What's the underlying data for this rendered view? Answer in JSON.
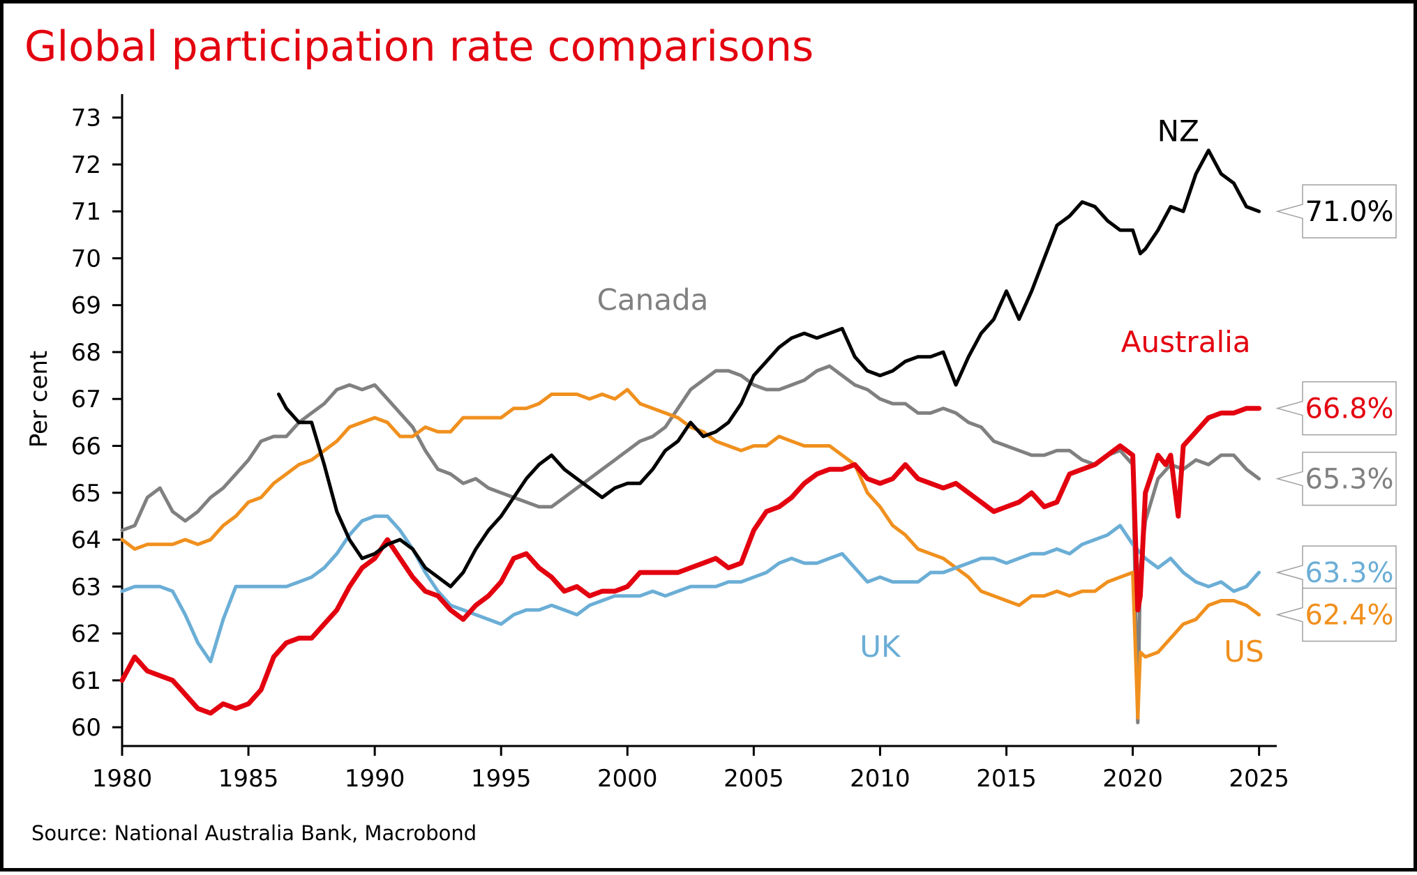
{
  "chart_data": {
    "type": "line",
    "title": "Global participation rate comparisons",
    "ylabel": "Per cent",
    "source": "Source: National Australia Bank, Macrobond",
    "xlim": [
      1980,
      2025.7
    ],
    "ylim": [
      59.6,
      73.5
    ],
    "x_ticks": [
      1980,
      1985,
      1990,
      1995,
      2000,
      2005,
      2010,
      2015,
      2020,
      2025
    ],
    "x_tick_labels": [
      "1980",
      "1985",
      "1990",
      "1995",
      "2000",
      "2005",
      "2010",
      "2015",
      "2020",
      "2025"
    ],
    "y_ticks": [
      60,
      61,
      62,
      63,
      64,
      65,
      66,
      67,
      68,
      69,
      70,
      71,
      72,
      73
    ],
    "y_tick_labels": [
      "60",
      "61",
      "62",
      "63",
      "64",
      "65",
      "66",
      "67",
      "68",
      "69",
      "70",
      "71",
      "72",
      "73"
    ],
    "grid": false,
    "colors": {
      "title": "#e3000f",
      "axis": "#000000"
    },
    "series": [
      {
        "key": "canada",
        "name": "Canada",
        "color": "#808080",
        "width": 5,
        "x": [
          1980,
          1980.5,
          1981,
          1981.5,
          1982,
          1982.5,
          1983,
          1983.5,
          1984,
          1984.5,
          1985,
          1985.5,
          1986,
          1986.5,
          1987,
          1987.5,
          1988,
          1988.5,
          1989,
          1989.5,
          1990,
          1990.5,
          1991,
          1991.5,
          1992,
          1992.5,
          1993,
          1993.5,
          1994,
          1994.5,
          1995,
          1995.5,
          1996,
          1996.5,
          1997,
          1997.5,
          1998,
          1998.5,
          1999,
          1999.5,
          2000,
          2000.5,
          2001,
          2001.5,
          2002,
          2002.5,
          2003,
          2003.5,
          2004,
          2004.5,
          2005,
          2005.5,
          2006,
          2006.5,
          2007,
          2007.5,
          2008,
          2008.5,
          2009,
          2009.5,
          2010,
          2010.5,
          2011,
          2011.5,
          2012,
          2012.5,
          2013,
          2013.5,
          2014,
          2014.5,
          2015,
          2015.5,
          2016,
          2016.5,
          2017,
          2017.5,
          2018,
          2018.5,
          2019,
          2019.5,
          2020,
          2020.2,
          2020.3,
          2020.5,
          2021,
          2021.5,
          2022,
          2022.5,
          2023,
          2023.5,
          2024,
          2024.5,
          2025
        ],
        "y": [
          64.2,
          64.3,
          64.9,
          65.1,
          64.6,
          64.4,
          64.6,
          64.9,
          65.1,
          65.4,
          65.7,
          66.1,
          66.2,
          66.2,
          66.5,
          66.7,
          66.9,
          67.2,
          67.3,
          67.2,
          67.3,
          67.0,
          66.7,
          66.4,
          65.9,
          65.5,
          65.4,
          65.2,
          65.3,
          65.1,
          65.0,
          64.9,
          64.8,
          64.7,
          64.7,
          64.9,
          65.1,
          65.3,
          65.5,
          65.7,
          65.9,
          66.1,
          66.2,
          66.4,
          66.8,
          67.2,
          67.4,
          67.6,
          67.6,
          67.5,
          67.3,
          67.2,
          67.2,
          67.3,
          67.4,
          67.6,
          67.7,
          67.5,
          67.3,
          67.2,
          67.0,
          66.9,
          66.9,
          66.7,
          66.7,
          66.8,
          66.7,
          66.5,
          66.4,
          66.1,
          66.0,
          65.9,
          65.8,
          65.8,
          65.9,
          65.9,
          65.7,
          65.6,
          65.8,
          65.9,
          65.6,
          60.1,
          63.4,
          64.4,
          65.3,
          65.6,
          65.5,
          65.7,
          65.6,
          65.8,
          65.8,
          65.5,
          65.3
        ]
      },
      {
        "key": "us",
        "name": "US",
        "color": "#f0901e",
        "width": 5,
        "x": [
          1980,
          1980.5,
          1981,
          1981.5,
          1982,
          1982.5,
          1983,
          1983.5,
          1984,
          1984.5,
          1985,
          1985.5,
          1986,
          1986.5,
          1987,
          1987.5,
          1988,
          1988.5,
          1989,
          1989.5,
          1990,
          1990.5,
          1991,
          1991.5,
          1992,
          1992.5,
          1993,
          1993.5,
          1994,
          1994.5,
          1995,
          1995.5,
          1996,
          1996.5,
          1997,
          1997.5,
          1998,
          1998.5,
          1999,
          1999.5,
          2000,
          2000.5,
          2001,
          2001.5,
          2002,
          2002.5,
          2003,
          2003.5,
          2004,
          2004.5,
          2005,
          2005.5,
          2006,
          2006.5,
          2007,
          2007.5,
          2008,
          2008.5,
          2009,
          2009.5,
          2010,
          2010.5,
          2011,
          2011.5,
          2012,
          2012.5,
          2013,
          2013.5,
          2014,
          2014.5,
          2015,
          2015.5,
          2016,
          2016.5,
          2017,
          2017.5,
          2018,
          2018.5,
          2019,
          2019.5,
          2020,
          2020.2,
          2020.3,
          2020.5,
          2021,
          2021.5,
          2022,
          2022.5,
          2023,
          2023.5,
          2024,
          2024.5,
          2025
        ],
        "y": [
          64.0,
          63.8,
          63.9,
          63.9,
          63.9,
          64.0,
          63.9,
          64.0,
          64.3,
          64.5,
          64.8,
          64.9,
          65.2,
          65.4,
          65.6,
          65.7,
          65.9,
          66.1,
          66.4,
          66.5,
          66.6,
          66.5,
          66.2,
          66.2,
          66.4,
          66.3,
          66.3,
          66.6,
          66.6,
          66.6,
          66.6,
          66.8,
          66.8,
          66.9,
          67.1,
          67.1,
          67.1,
          67.0,
          67.1,
          67.0,
          67.2,
          66.9,
          66.8,
          66.7,
          66.6,
          66.4,
          66.3,
          66.1,
          66.0,
          65.9,
          66.0,
          66.0,
          66.2,
          66.1,
          66.0,
          66.0,
          66.0,
          65.8,
          65.6,
          65.0,
          64.7,
          64.3,
          64.1,
          63.8,
          63.7,
          63.6,
          63.4,
          63.2,
          62.9,
          62.8,
          62.7,
          62.6,
          62.8,
          62.8,
          62.9,
          62.8,
          62.9,
          62.9,
          63.1,
          63.2,
          63.3,
          60.2,
          61.6,
          61.5,
          61.6,
          61.9,
          62.2,
          62.3,
          62.6,
          62.7,
          62.7,
          62.6,
          62.4
        ]
      },
      {
        "key": "uk",
        "name": "UK",
        "color": "#6baed6",
        "width": 5,
        "x": [
          1980,
          1980.5,
          1981,
          1981.5,
          1982,
          1982.5,
          1983,
          1983.5,
          1984,
          1984.5,
          1985,
          1985.5,
          1986,
          1986.5,
          1987,
          1987.5,
          1988,
          1988.5,
          1989,
          1989.5,
          1990,
          1990.5,
          1991,
          1991.5,
          1992,
          1992.5,
          1993,
          1993.5,
          1994,
          1994.5,
          1995,
          1995.5,
          1996,
          1996.5,
          1997,
          1997.5,
          1998,
          1998.5,
          1999,
          1999.5,
          2000,
          2000.5,
          2001,
          2001.5,
          2002,
          2002.5,
          2003,
          2003.5,
          2004,
          2004.5,
          2005,
          2005.5,
          2006,
          2006.5,
          2007,
          2007.5,
          2008,
          2008.5,
          2009,
          2009.5,
          2010,
          2010.5,
          2011,
          2011.5,
          2012,
          2012.5,
          2013,
          2013.5,
          2014,
          2014.5,
          2015,
          2015.5,
          2016,
          2016.5,
          2017,
          2017.5,
          2018,
          2018.5,
          2019,
          2019.5,
          2020,
          2020.5,
          2021,
          2021.5,
          2022,
          2022.5,
          2023,
          2023.5,
          2024,
          2024.5,
          2025
        ],
        "y": [
          62.9,
          63.0,
          63.0,
          63.0,
          62.9,
          62.4,
          61.8,
          61.4,
          62.3,
          63.0,
          63.0,
          63.0,
          63.0,
          63.0,
          63.1,
          63.2,
          63.4,
          63.7,
          64.1,
          64.4,
          64.5,
          64.5,
          64.2,
          63.8,
          63.3,
          62.9,
          62.6,
          62.5,
          62.4,
          62.3,
          62.2,
          62.4,
          62.5,
          62.5,
          62.6,
          62.5,
          62.4,
          62.6,
          62.7,
          62.8,
          62.8,
          62.8,
          62.9,
          62.8,
          62.9,
          63.0,
          63.0,
          63.0,
          63.1,
          63.1,
          63.2,
          63.3,
          63.5,
          63.6,
          63.5,
          63.5,
          63.6,
          63.7,
          63.4,
          63.1,
          63.2,
          63.1,
          63.1,
          63.1,
          63.3,
          63.3,
          63.4,
          63.5,
          63.6,
          63.6,
          63.5,
          63.6,
          63.7,
          63.7,
          63.8,
          63.7,
          63.9,
          64.0,
          64.1,
          64.3,
          63.9,
          63.6,
          63.4,
          63.6,
          63.3,
          63.1,
          63.0,
          63.1,
          62.9,
          63.0,
          63.3
        ]
      },
      {
        "key": "australia",
        "name": "Australia",
        "color": "#e3000f",
        "width": 7,
        "x": [
          1980,
          1980.5,
          1981,
          1981.5,
          1982,
          1982.5,
          1983,
          1983.5,
          1984,
          1984.5,
          1985,
          1985.5,
          1986,
          1986.5,
          1987,
          1987.5,
          1988,
          1988.5,
          1989,
          1989.5,
          1990,
          1990.5,
          1991,
          1991.5,
          1992,
          1992.5,
          1993,
          1993.5,
          1994,
          1994.5,
          1995,
          1995.5,
          1996,
          1996.5,
          1997,
          1997.5,
          1998,
          1998.5,
          1999,
          1999.5,
          2000,
          2000.5,
          2001,
          2001.5,
          2002,
          2002.5,
          2003,
          2003.5,
          2004,
          2004.5,
          2005,
          2005.5,
          2006,
          2006.5,
          2007,
          2007.5,
          2008,
          2008.5,
          2009,
          2009.5,
          2010,
          2010.5,
          2011,
          2011.5,
          2012,
          2012.5,
          2013,
          2013.5,
          2014,
          2014.5,
          2015,
          2015.5,
          2016,
          2016.5,
          2017,
          2017.5,
          2018,
          2018.5,
          2019,
          2019.5,
          2020,
          2020.2,
          2020.3,
          2020.5,
          2021,
          2021.3,
          2021.5,
          2021.8,
          2022,
          2022.5,
          2023,
          2023.5,
          2024,
          2024.5,
          2025
        ],
        "y": [
          61.0,
          61.5,
          61.2,
          61.1,
          61.0,
          60.7,
          60.4,
          60.3,
          60.5,
          60.4,
          60.5,
          60.8,
          61.5,
          61.8,
          61.9,
          61.9,
          62.2,
          62.5,
          63.0,
          63.4,
          63.6,
          64.0,
          63.6,
          63.2,
          62.9,
          62.8,
          62.5,
          62.3,
          62.6,
          62.8,
          63.1,
          63.6,
          63.7,
          63.4,
          63.2,
          62.9,
          63.0,
          62.8,
          62.9,
          62.9,
          63.0,
          63.3,
          63.3,
          63.3,
          63.3,
          63.4,
          63.5,
          63.6,
          63.4,
          63.5,
          64.2,
          64.6,
          64.7,
          64.9,
          65.2,
          65.4,
          65.5,
          65.5,
          65.6,
          65.3,
          65.2,
          65.3,
          65.6,
          65.3,
          65.2,
          65.1,
          65.2,
          65.0,
          64.8,
          64.6,
          64.7,
          64.8,
          65.0,
          64.7,
          64.8,
          65.4,
          65.5,
          65.6,
          65.8,
          66.0,
          65.8,
          62.5,
          62.8,
          65.0,
          65.8,
          65.6,
          65.8,
          64.5,
          66.0,
          66.3,
          66.6,
          66.7,
          66.7,
          66.8,
          66.8
        ]
      },
      {
        "key": "nz",
        "name": "NZ",
        "color": "#000000",
        "width": 5,
        "x": [
          1986.2,
          1986.5,
          1987,
          1987.5,
          1988,
          1988.5,
          1989,
          1989.5,
          1990,
          1990.5,
          1991,
          1991.5,
          1992,
          1992.5,
          1993,
          1993.5,
          1994,
          1994.5,
          1995,
          1995.5,
          1996,
          1996.5,
          1997,
          1997.5,
          1998,
          1998.5,
          1999,
          1999.5,
          2000,
          2000.5,
          2001,
          2001.5,
          2002,
          2002.5,
          2003,
          2003.5,
          2004,
          2004.5,
          2005,
          2005.5,
          2006,
          2006.5,
          2007,
          2007.5,
          2008,
          2008.5,
          2009,
          2009.5,
          2010,
          2010.5,
          2011,
          2011.5,
          2012,
          2012.5,
          2013,
          2013.5,
          2014,
          2014.5,
          2015,
          2015.5,
          2016,
          2016.5,
          2017,
          2017.5,
          2018,
          2018.5,
          2019,
          2019.5,
          2020,
          2020.3,
          2020.5,
          2021,
          2021.5,
          2022,
          2022.5,
          2023,
          2023.5,
          2024,
          2024.5,
          2025
        ],
        "y": [
          67.1,
          66.8,
          66.5,
          66.5,
          65.6,
          64.6,
          64.0,
          63.6,
          63.7,
          63.9,
          64.0,
          63.8,
          63.4,
          63.2,
          63.0,
          63.3,
          63.8,
          64.2,
          64.5,
          64.9,
          65.3,
          65.6,
          65.8,
          65.5,
          65.3,
          65.1,
          64.9,
          65.1,
          65.2,
          65.2,
          65.5,
          65.9,
          66.1,
          66.5,
          66.2,
          66.3,
          66.5,
          66.9,
          67.5,
          67.8,
          68.1,
          68.3,
          68.4,
          68.3,
          68.4,
          68.5,
          67.9,
          67.6,
          67.5,
          67.6,
          67.8,
          67.9,
          67.9,
          68.0,
          67.3,
          67.9,
          68.4,
          68.7,
          69.3,
          68.7,
          69.3,
          70.0,
          70.7,
          70.9,
          71.2,
          71.1,
          70.8,
          70.6,
          70.6,
          70.1,
          70.2,
          70.6,
          71.1,
          71.0,
          71.8,
          72.3,
          71.8,
          71.6,
          71.1,
          71.0
        ]
      }
    ],
    "series_labels": [
      {
        "key": "canada",
        "text": "Canada",
        "color": "#808080",
        "at": [
          2001,
          68.9
        ]
      },
      {
        "key": "australia",
        "text": "Australia",
        "color": "#e3000f",
        "at": [
          2022.1,
          68.0
        ]
      },
      {
        "key": "nz",
        "text": "NZ",
        "color": "#000000",
        "at": [
          2021.8,
          72.5
        ]
      },
      {
        "key": "uk",
        "text": "UK",
        "color": "#6baed6",
        "at": [
          2010,
          61.5
        ]
      },
      {
        "key": "us",
        "text": "US",
        "color": "#f0901e",
        "at": [
          2024.4,
          61.4
        ]
      }
    ],
    "end_labels": [
      {
        "key": "nz",
        "text": "71.0%",
        "value": 71.0,
        "color": "#000000"
      },
      {
        "key": "australia",
        "text": "66.8%",
        "value": 66.8,
        "color": "#e3000f"
      },
      {
        "key": "canada",
        "text": "65.3%",
        "value": 65.3,
        "color": "#808080"
      },
      {
        "key": "uk",
        "text": "63.3%",
        "value": 63.3,
        "color": "#6baed6"
      },
      {
        "key": "us",
        "text": "62.4%",
        "value": 62.4,
        "color": "#f0901e"
      }
    ]
  }
}
